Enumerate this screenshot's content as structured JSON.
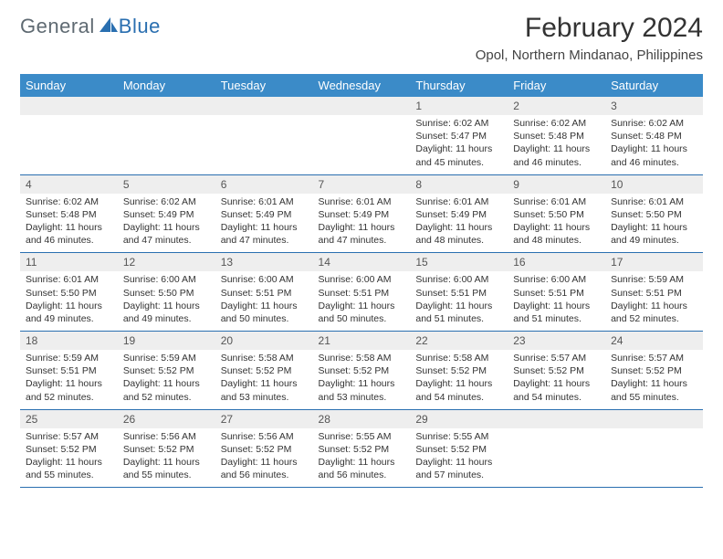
{
  "logo": {
    "general": "General",
    "blue": "Blue"
  },
  "header": {
    "title": "February 2024",
    "location": "Opol, Northern Mindanao, Philippines"
  },
  "colors": {
    "header_bg": "#3b8bc8",
    "header_text": "#ffffff",
    "daynum_bg": "#eeeeee",
    "border": "#2a6fb0",
    "logo_gray": "#5f6a72",
    "logo_blue": "#2a6fb0"
  },
  "day_headers": [
    "Sunday",
    "Monday",
    "Tuesday",
    "Wednesday",
    "Thursday",
    "Friday",
    "Saturday"
  ],
  "weeks": [
    [
      null,
      null,
      null,
      null,
      {
        "n": "1",
        "sr": "6:02 AM",
        "ss": "5:47 PM",
        "dh": "11",
        "dm": "45"
      },
      {
        "n": "2",
        "sr": "6:02 AM",
        "ss": "5:48 PM",
        "dh": "11",
        "dm": "46"
      },
      {
        "n": "3",
        "sr": "6:02 AM",
        "ss": "5:48 PM",
        "dh": "11",
        "dm": "46"
      }
    ],
    [
      {
        "n": "4",
        "sr": "6:02 AM",
        "ss": "5:48 PM",
        "dh": "11",
        "dm": "46"
      },
      {
        "n": "5",
        "sr": "6:02 AM",
        "ss": "5:49 PM",
        "dh": "11",
        "dm": "47"
      },
      {
        "n": "6",
        "sr": "6:01 AM",
        "ss": "5:49 PM",
        "dh": "11",
        "dm": "47"
      },
      {
        "n": "7",
        "sr": "6:01 AM",
        "ss": "5:49 PM",
        "dh": "11",
        "dm": "47"
      },
      {
        "n": "8",
        "sr": "6:01 AM",
        "ss": "5:49 PM",
        "dh": "11",
        "dm": "48"
      },
      {
        "n": "9",
        "sr": "6:01 AM",
        "ss": "5:50 PM",
        "dh": "11",
        "dm": "48"
      },
      {
        "n": "10",
        "sr": "6:01 AM",
        "ss": "5:50 PM",
        "dh": "11",
        "dm": "49"
      }
    ],
    [
      {
        "n": "11",
        "sr": "6:01 AM",
        "ss": "5:50 PM",
        "dh": "11",
        "dm": "49"
      },
      {
        "n": "12",
        "sr": "6:00 AM",
        "ss": "5:50 PM",
        "dh": "11",
        "dm": "49"
      },
      {
        "n": "13",
        "sr": "6:00 AM",
        "ss": "5:51 PM",
        "dh": "11",
        "dm": "50"
      },
      {
        "n": "14",
        "sr": "6:00 AM",
        "ss": "5:51 PM",
        "dh": "11",
        "dm": "50"
      },
      {
        "n": "15",
        "sr": "6:00 AM",
        "ss": "5:51 PM",
        "dh": "11",
        "dm": "51"
      },
      {
        "n": "16",
        "sr": "6:00 AM",
        "ss": "5:51 PM",
        "dh": "11",
        "dm": "51"
      },
      {
        "n": "17",
        "sr": "5:59 AM",
        "ss": "5:51 PM",
        "dh": "11",
        "dm": "52"
      }
    ],
    [
      {
        "n": "18",
        "sr": "5:59 AM",
        "ss": "5:51 PM",
        "dh": "11",
        "dm": "52"
      },
      {
        "n": "19",
        "sr": "5:59 AM",
        "ss": "5:52 PM",
        "dh": "11",
        "dm": "52"
      },
      {
        "n": "20",
        "sr": "5:58 AM",
        "ss": "5:52 PM",
        "dh": "11",
        "dm": "53"
      },
      {
        "n": "21",
        "sr": "5:58 AM",
        "ss": "5:52 PM",
        "dh": "11",
        "dm": "53"
      },
      {
        "n": "22",
        "sr": "5:58 AM",
        "ss": "5:52 PM",
        "dh": "11",
        "dm": "54"
      },
      {
        "n": "23",
        "sr": "5:57 AM",
        "ss": "5:52 PM",
        "dh": "11",
        "dm": "54"
      },
      {
        "n": "24",
        "sr": "5:57 AM",
        "ss": "5:52 PM",
        "dh": "11",
        "dm": "55"
      }
    ],
    [
      {
        "n": "25",
        "sr": "5:57 AM",
        "ss": "5:52 PM",
        "dh": "11",
        "dm": "55"
      },
      {
        "n": "26",
        "sr": "5:56 AM",
        "ss": "5:52 PM",
        "dh": "11",
        "dm": "55"
      },
      {
        "n": "27",
        "sr": "5:56 AM",
        "ss": "5:52 PM",
        "dh": "11",
        "dm": "56"
      },
      {
        "n": "28",
        "sr": "5:55 AM",
        "ss": "5:52 PM",
        "dh": "11",
        "dm": "56"
      },
      {
        "n": "29",
        "sr": "5:55 AM",
        "ss": "5:52 PM",
        "dh": "11",
        "dm": "57"
      },
      null,
      null
    ]
  ],
  "labels": {
    "sunrise": "Sunrise:",
    "sunset": "Sunset:",
    "daylight_prefix": "Daylight:",
    "hours_word": "hours",
    "and_word": "and",
    "minutes_word": "minutes."
  }
}
